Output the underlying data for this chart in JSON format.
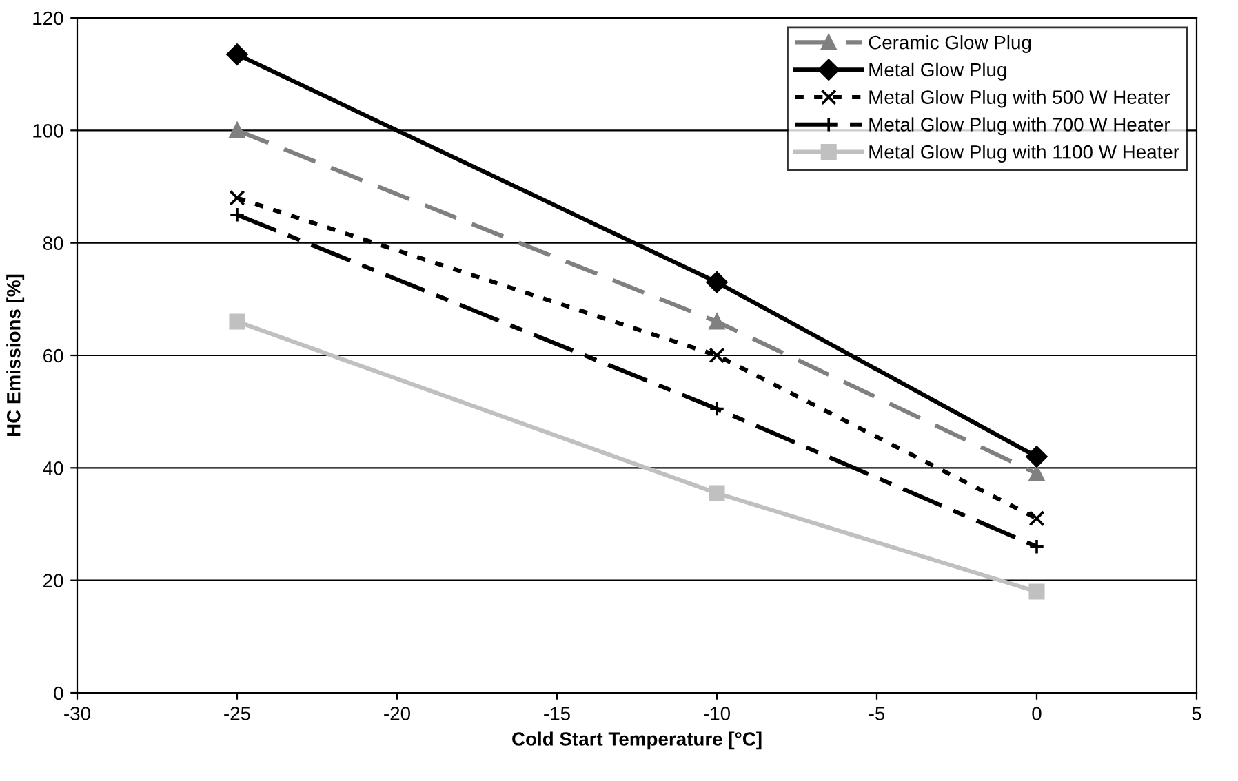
{
  "chart_data": {
    "type": "line",
    "xlabel": "Cold Start Temperature [°C]",
    "ylabel": "HC Emissions [%]",
    "x": [
      -25,
      -10,
      0
    ],
    "series": [
      {
        "name": "Ceramic Glow Plug",
        "color": "#808080",
        "values": [
          100,
          66,
          39
        ],
        "marker": "triangle",
        "line_style": "dashed"
      },
      {
        "name": "Metal Glow Plug",
        "color": "#000000",
        "values": [
          113.5,
          73,
          42
        ],
        "marker": "diamond",
        "line_style": "solid"
      },
      {
        "name": "Metal Glow Plug with 500 W Heater",
        "color": "#000000",
        "values": [
          88,
          60,
          31
        ],
        "marker": "cross",
        "line_style": "dotted"
      },
      {
        "name": "Metal Glow Plug with 700 W Heater",
        "color": "#000000",
        "values": [
          85,
          50.5,
          26
        ],
        "marker": "plus",
        "line_style": "dashed"
      },
      {
        "name": "Metal Glow Plug with 1100 W Heater",
        "color": "#c0c0c0",
        "values": [
          66,
          35.5,
          18
        ],
        "marker": "square",
        "line_style": "solid"
      }
    ],
    "xlim": [
      -30,
      5
    ],
    "xticks": [
      -30,
      -25,
      -20,
      -15,
      -10,
      -5,
      0,
      5
    ],
    "ylim": [
      0,
      120
    ],
    "yticks": [
      0,
      20,
      40,
      60,
      80,
      100,
      120
    ],
    "grid": "y",
    "legend": "top right"
  }
}
